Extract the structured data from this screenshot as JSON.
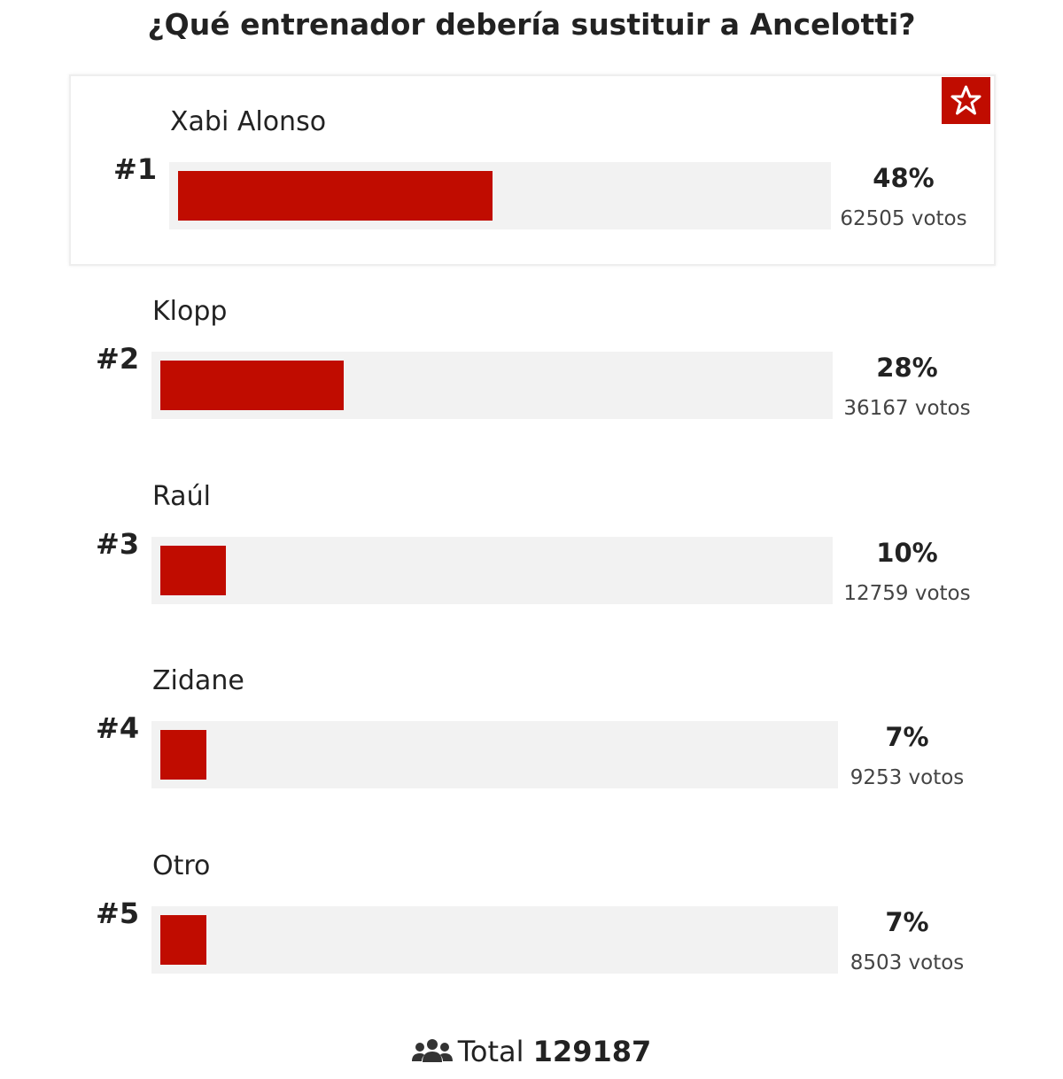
{
  "title": "¿Qué entrenador debería sustituir a Ancelotti?",
  "options": [
    {
      "rank": "#1",
      "name": "Xabi Alonso",
      "percent": 48,
      "percent_label": "48%",
      "votes_label": "62505 votos"
    },
    {
      "rank": "#2",
      "name": "Klopp",
      "percent": 28,
      "percent_label": "28%",
      "votes_label": "36167 votos"
    },
    {
      "rank": "#3",
      "name": "Raúl",
      "percent": 10,
      "percent_label": "10%",
      "votes_label": "12759 votos"
    },
    {
      "rank": "#4",
      "name": "Zidane",
      "percent": 7,
      "percent_label": "7%",
      "votes_label": "9253 votos"
    },
    {
      "rank": "#5",
      "name": "Otro",
      "percent": 7,
      "percent_label": "7%",
      "votes_label": "8503 votos"
    }
  ],
  "total": {
    "label": "Total",
    "value": "129187"
  }
}
